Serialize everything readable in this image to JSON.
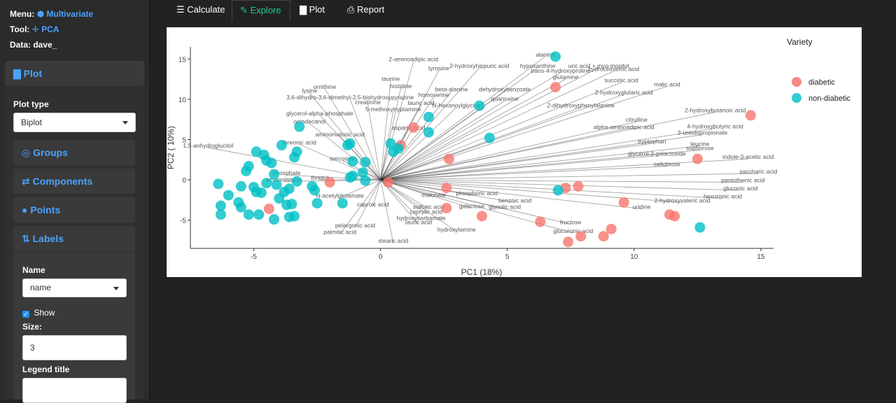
{
  "sidebar": {
    "menu_label": "Menu:",
    "menu_value": "Multivariate",
    "tool_label": "Tool:",
    "tool_value": "PCA",
    "data_label": "Data: dave_",
    "plot_heading": "Plot",
    "plot_type_label": "Plot type",
    "plot_type_value": "Biplot",
    "groups_heading": "Groups",
    "components_heading": "Components",
    "points_heading": "Points",
    "labels_heading": "Labels",
    "name_label": "Name",
    "name_value": "name",
    "show_label": "Show",
    "show_checked": true,
    "size_label": "Size:",
    "size_value": "3",
    "legend_title_label": "Legend title",
    "legend_title_value": ""
  },
  "tabs": [
    {
      "label": "Calculate",
      "icon": "sliders-icon",
      "active": false
    },
    {
      "label": "Explore",
      "icon": "edit-icon",
      "active": true
    },
    {
      "label": "Plot",
      "icon": "bar-chart-icon",
      "active": false
    },
    {
      "label": "Report",
      "icon": "file-icon",
      "active": false
    }
  ],
  "chart_data": {
    "type": "scatter",
    "xlabel": "PC1 (18%)",
    "ylabel": "PC2 ( 10%)",
    "xlim": [
      -7.5,
      15.5
    ],
    "ylim": [
      -8.5,
      16.5
    ],
    "xticks": [
      -5,
      0,
      5,
      10,
      15
    ],
    "yticks": [
      -5,
      0,
      5,
      10,
      15
    ],
    "grid": false,
    "legend_title": "Variety",
    "legend_position": "right",
    "colors": {
      "diabetic": "#f8766d",
      "non-diabetic": "#00bfc4"
    },
    "series": [
      {
        "name": "diabetic",
        "points": [
          [
            14.6,
            8
          ],
          [
            12.5,
            2.6
          ],
          [
            11.6,
            -4.5
          ],
          [
            11.4,
            -4.3
          ],
          [
            9.6,
            -2.8
          ],
          [
            9.1,
            -6.1
          ],
          [
            8.8,
            -7
          ],
          [
            7.9,
            -7
          ],
          [
            7.4,
            -7.7
          ],
          [
            6.3,
            -5.2
          ],
          [
            4,
            -4.5
          ],
          [
            2.6,
            -3.5
          ],
          [
            2.6,
            -1
          ],
          [
            2.7,
            2.6
          ],
          [
            1.3,
            6.5
          ],
          [
            0.8,
            4.3
          ],
          [
            0.3,
            -0.3
          ],
          [
            -2.0,
            -0.3
          ],
          [
            -4.4,
            -3.6
          ],
          [
            6.9,
            11.5
          ],
          [
            7.3,
            -1
          ],
          [
            7.8,
            -0.8
          ]
        ]
      },
      {
        "name": "non-diabetic",
        "points": [
          [
            6.9,
            15.3
          ],
          [
            12.6,
            -5.9
          ],
          [
            7.0,
            -1.3
          ],
          [
            4.3,
            5.2
          ],
          [
            3.9,
            9.2
          ],
          [
            1.9,
            7.8
          ],
          [
            0.5,
            3.5
          ],
          [
            0.7,
            3.9
          ],
          [
            -0.6,
            2.2
          ],
          [
            -0.7,
            0.9
          ],
          [
            -1.1,
            0.5
          ],
          [
            -1.3,
            4.3
          ],
          [
            -1.2,
            4.5
          ],
          [
            -2.5,
            -2.9
          ],
          [
            -2.6,
            -1.3
          ],
          [
            -3.2,
            6.6
          ],
          [
            -3.4,
            2.8
          ],
          [
            -3.9,
            4.3
          ],
          [
            -3.3,
            3.5
          ],
          [
            -4.2,
            0.7
          ],
          [
            -4.3,
            2.1
          ],
          [
            -4.6,
            3.1
          ],
          [
            -4.9,
            3.5
          ],
          [
            -4.7,
            -1.6
          ],
          [
            -5.0,
            -0.9
          ],
          [
            -4.8,
            -4.3
          ],
          [
            -5.2,
            -4.3
          ],
          [
            -5.5,
            -3.4
          ],
          [
            -5.5,
            -0.8
          ],
          [
            -5.3,
            1.1
          ],
          [
            -5.2,
            1.7
          ],
          [
            -4.5,
            2.4
          ],
          [
            -5.6,
            -2.8
          ],
          [
            -6.0,
            -1.9
          ],
          [
            -6.4,
            -0.5
          ],
          [
            -6.3,
            -3.2
          ],
          [
            -6.3,
            -4.3
          ],
          [
            -4.0,
            -2.3
          ],
          [
            -3.8,
            -1.5
          ],
          [
            -3.7,
            -3.1
          ],
          [
            -3.6,
            -4.6
          ],
          [
            -3.5,
            -3.0
          ],
          [
            -3.4,
            -4.5
          ],
          [
            -3.3,
            -0.2
          ],
          [
            -4.1,
            -0.6
          ],
          [
            -4.5,
            -0.4
          ],
          [
            -4.9,
            -1.5
          ],
          [
            -4.2,
            -4.9
          ],
          [
            -3.6,
            -1.1
          ],
          [
            -2.7,
            -0.8
          ],
          [
            -1.5,
            -2.9
          ],
          [
            -1.2,
            0.3
          ],
          [
            -0.6,
            -0.1
          ],
          [
            -1.1,
            2.3
          ],
          [
            0.4,
            4.5
          ],
          [
            1.9,
            5.9
          ]
        ]
      }
    ],
    "labels": [
      [
        "alanine",
        6.5,
        15.3
      ],
      [
        "2-aminoadipic acid",
        1.3,
        14.7
      ],
      [
        "taurine",
        0.4,
        12.3
      ],
      [
        "tyrosine",
        2.3,
        13.6
      ],
      [
        "2-hydroxyhippuric acid",
        3.9,
        13.9
      ],
      [
        "hypoxanthine",
        6.2,
        13.9
      ],
      [
        "trans-4-hydroxyproline",
        7.1,
        13.3
      ],
      [
        "uric acid + myo-inositol",
        8.6,
        13.9
      ],
      [
        "hydrocinnamic acid",
        9.2,
        13.5
      ],
      [
        "ornithine",
        -2.2,
        11.3
      ],
      [
        "histidine",
        0.8,
        11.4
      ],
      [
        "beta-alanine",
        2.8,
        11.0
      ],
      [
        "dehydroxybenzoate",
        4.9,
        11.0
      ],
      [
        "glutamine",
        7.3,
        12.5
      ],
      [
        "succinic acid",
        9.5,
        12.1
      ],
      [
        "malic acid",
        11.3,
        11.6
      ],
      [
        "lysine",
        -2.8,
        10.8
      ],
      [
        "homoserine",
        2.1,
        10.3
      ],
      [
        "quanosine",
        4.9,
        9.8
      ],
      [
        "2-hydroxyglutaric acid",
        9.6,
        10.6
      ],
      [
        "3,6-dihydro-3,6-dimethyl-2,5-bishydroxypyrazine",
        -1.2,
        10.0
      ],
      [
        "creatinine",
        -0.5,
        9.4
      ],
      [
        "N-hexanoylglycine",
        3.0,
        9.0
      ],
      [
        "2-dihydroxyphenylalanine",
        7.9,
        9.0
      ],
      [
        "5-methoxytryptamine",
        0.5,
        8.5
      ],
      [
        "lauric acid",
        1.6,
        9.3
      ],
      [
        "glycerol-alpha-phosphate",
        -2.4,
        8.0
      ],
      [
        "2-hydroxybutanoic acid",
        13.2,
        8.4
      ],
      [
        "octadecanol",
        -2.8,
        7.0
      ],
      [
        "citrulline",
        10.1,
        7.2
      ],
      [
        "aspartic acid",
        1.1,
        6.2
      ],
      [
        "aminomalonic acid",
        -1.6,
        5.4
      ],
      [
        "alpha-aminoadipic acid",
        9.6,
        6.3
      ],
      [
        "4-hydroxybutyric acid",
        13.2,
        6.4
      ],
      [
        "3-ureidopropionate",
        12.7,
        5.6
      ],
      [
        "threonic acid",
        -3.2,
        4.4
      ],
      [
        "1,5-anhydroglucitol",
        -6.8,
        4.0
      ],
      [
        "leucine",
        12.6,
        4.2
      ],
      [
        "sophorose",
        12.6,
        3.7
      ],
      [
        "tryptophan",
        10.7,
        4.5
      ],
      [
        "glycerol-3-galactoside",
        10.9,
        3.0
      ],
      [
        "indole-3-acetic acid",
        14.5,
        2.6
      ],
      [
        "saccharic acid",
        14.9,
        0.8
      ],
      [
        "cellobiose",
        11.3,
        1.7
      ],
      [
        "aarcosine",
        -1.5,
        2.4
      ],
      [
        "phosphate",
        -3.7,
        0.6
      ],
      [
        "ethanolamine",
        -3.8,
        -0.2
      ],
      [
        "N-acetylglutamate",
        -1.6,
        -2.2
      ],
      [
        "threitol",
        -2.4,
        0.0
      ],
      [
        "pantothenic acid",
        14.3,
        -0.3
      ],
      [
        "gluconic acid",
        14.2,
        -1.3
      ],
      [
        "hexuronic acid",
        13.5,
        -2.3
      ],
      [
        "2-hydroxyvaleric acid",
        11.9,
        -2.8
      ],
      [
        "uridine",
        10.3,
        -3.6
      ],
      [
        "galactose",
        3.6,
        -3.5
      ],
      [
        "glycolic acid",
        4.9,
        -3.6
      ],
      [
        "benzoic acid",
        5.3,
        -2.8
      ],
      [
        "fructose",
        7.5,
        -5.5
      ],
      [
        "glucuronic acid",
        7.6,
        -6.6
      ],
      [
        "caprylic acid",
        1.8,
        -4.2
      ],
      [
        "hydroxycarbamate",
        1.6,
        -5.0
      ],
      [
        "lauric acid",
        1.5,
        -5.5
      ],
      [
        "hydroxylamine",
        3.0,
        -6.4
      ],
      [
        "pelargonic acid",
        -1.0,
        -5.9
      ],
      [
        "palmitic acid",
        -1.6,
        -6.7
      ],
      [
        "stearic acid",
        0.5,
        -7.8
      ],
      [
        "caproic acid",
        -0.3,
        -3.3
      ],
      [
        "sulfuric acid",
        1.9,
        -3.6
      ],
      [
        "malonate",
        2.1,
        -2.1
      ],
      [
        "phosphoric acid",
        3.8,
        -1.9
      ]
    ]
  }
}
